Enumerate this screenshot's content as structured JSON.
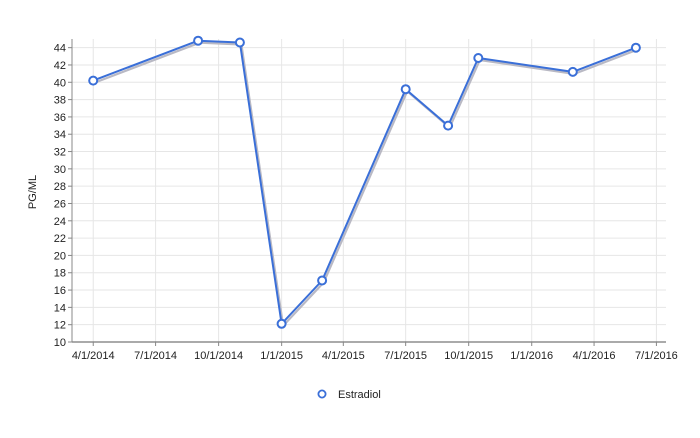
{
  "chart_data": {
    "type": "line",
    "title": "",
    "xlabel": "",
    "ylabel": "PG/ML",
    "x_ticks": [
      "4/1/2014",
      "7/1/2014",
      "10/1/2014",
      "1/1/2015",
      "4/1/2015",
      "7/1/2015",
      "10/1/2015",
      "1/1/2016",
      "4/1/2016",
      "7/1/2016"
    ],
    "x_range": [
      "2014-03-01",
      "2016-07-15"
    ],
    "ylim": [
      10,
      45
    ],
    "y_ticks": [
      10,
      12,
      14,
      16,
      18,
      20,
      22,
      24,
      26,
      28,
      30,
      32,
      34,
      36,
      38,
      40,
      42,
      44
    ],
    "grid": true,
    "legend_position": "bottom",
    "series": [
      {
        "name": "Estradiol",
        "color": "#3a6fd8",
        "points": [
          {
            "x": "2014-04-01",
            "y": 40.2
          },
          {
            "x": "2014-09-01",
            "y": 44.8
          },
          {
            "x": "2014-11-01",
            "y": 44.6
          },
          {
            "x": "2015-01-01",
            "y": 12.1
          },
          {
            "x": "2015-03-01",
            "y": 17.1
          },
          {
            "x": "2015-07-01",
            "y": 39.2
          },
          {
            "x": "2015-09-01",
            "y": 35.0
          },
          {
            "x": "2015-10-15",
            "y": 42.8
          },
          {
            "x": "2016-03-01",
            "y": 41.2
          },
          {
            "x": "2016-06-01",
            "y": 44.0
          }
        ]
      }
    ]
  }
}
